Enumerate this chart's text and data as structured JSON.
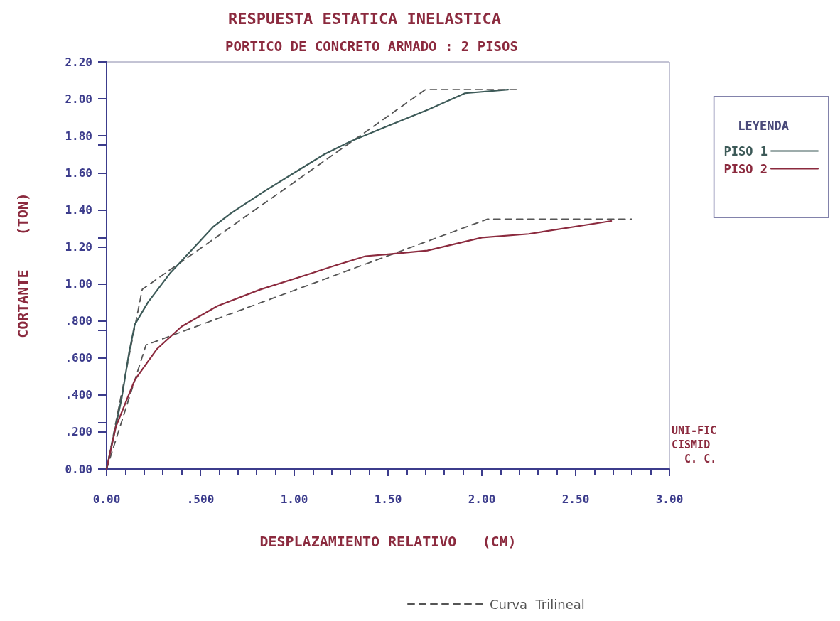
{
  "chart_data": {
    "type": "line",
    "title": "RESPUESTA ESTATICA INELASTICA",
    "subtitle": "PORTICO DE CONCRETO ARMADO : 2 PISOS",
    "xlabel": "DESPLAZAMIENTO RELATIVO   (CM)",
    "ylabel": "CORTANTE    (TON)",
    "legend_title": "LEYENDA",
    "legend": "right",
    "annotations": [
      "UNI-FIC\nCISMID\n  C. C."
    ],
    "xlim": [
      0,
      3
    ],
    "xticks": [
      {
        "value": 0,
        "label": "0.00"
      },
      {
        "value": 0.5,
        "label": ".500"
      },
      {
        "value": 1,
        "label": "1.00"
      },
      {
        "value": 1.5,
        "label": "1.50"
      },
      {
        "value": 2,
        "label": "2.00"
      },
      {
        "value": 2.5,
        "label": "2.50"
      },
      {
        "value": 3,
        "label": "3.00"
      }
    ],
    "ylim": [
      0,
      2.2
    ],
    "yticks": [
      {
        "value": 0,
        "label": "0.00"
      },
      {
        "value": 0.2,
        "label": ".200"
      },
      {
        "value": 0.4,
        "label": ".400"
      },
      {
        "value": 0.6,
        "label": ".600"
      },
      {
        "value": 0.8,
        "label": ".800"
      },
      {
        "value": 1,
        "label": "1.00"
      },
      {
        "value": 1.2,
        "label": "1.20"
      },
      {
        "value": 1.4,
        "label": "1.40"
      },
      {
        "value": 1.6,
        "label": "1.60"
      },
      {
        "value": 1.8,
        "label": "1.80"
      },
      {
        "value": 2,
        "label": "2.00"
      },
      {
        "value": 2.2,
        "label": "2.20"
      }
    ],
    "grid": false,
    "marker": "none",
    "series": [
      {
        "name": "PISO 1",
        "color": "#3d5a58",
        "line_style": "solid",
        "x": [
          0,
          0.08,
          0.12,
          0.15,
          0.22,
          0.34,
          0.46,
          0.57,
          0.66,
          0.84,
          1.0,
          1.16,
          1.3,
          1.49,
          1.71,
          1.91,
          2.14
        ],
        "values": [
          0,
          0.38,
          0.63,
          0.78,
          0.9,
          1.06,
          1.19,
          1.31,
          1.38,
          1.5,
          1.6,
          1.7,
          1.77,
          1.85,
          1.94,
          2.03,
          2.05
        ]
      },
      {
        "name": "PISO 2",
        "color": "#8b2a3e",
        "line_style": "solid",
        "x": [
          0,
          0.05,
          0.11,
          0.15,
          0.22,
          0.27,
          0.4,
          0.59,
          0.82,
          1.07,
          1.22,
          1.38,
          1.5,
          1.71,
          2.0,
          2.25,
          2.69
        ],
        "values": [
          0,
          0.23,
          0.38,
          0.48,
          0.58,
          0.65,
          0.77,
          0.88,
          0.97,
          1.05,
          1.1,
          1.15,
          1.16,
          1.18,
          1.25,
          1.27,
          1.34
        ]
      },
      {
        "name": "Curva  Trilineal",
        "color": "#555555",
        "line_style": "dashed",
        "x": [
          0,
          0.19,
          1.7,
          2.19
        ],
        "values": [
          0,
          0.97,
          2.05,
          2.05
        ]
      },
      {
        "color": "#555555",
        "line_style": "dashed",
        "x": [
          0,
          0.21,
          2.03,
          2.8
        ],
        "values": [
          0,
          0.67,
          1.35,
          1.35
        ]
      }
    ]
  }
}
